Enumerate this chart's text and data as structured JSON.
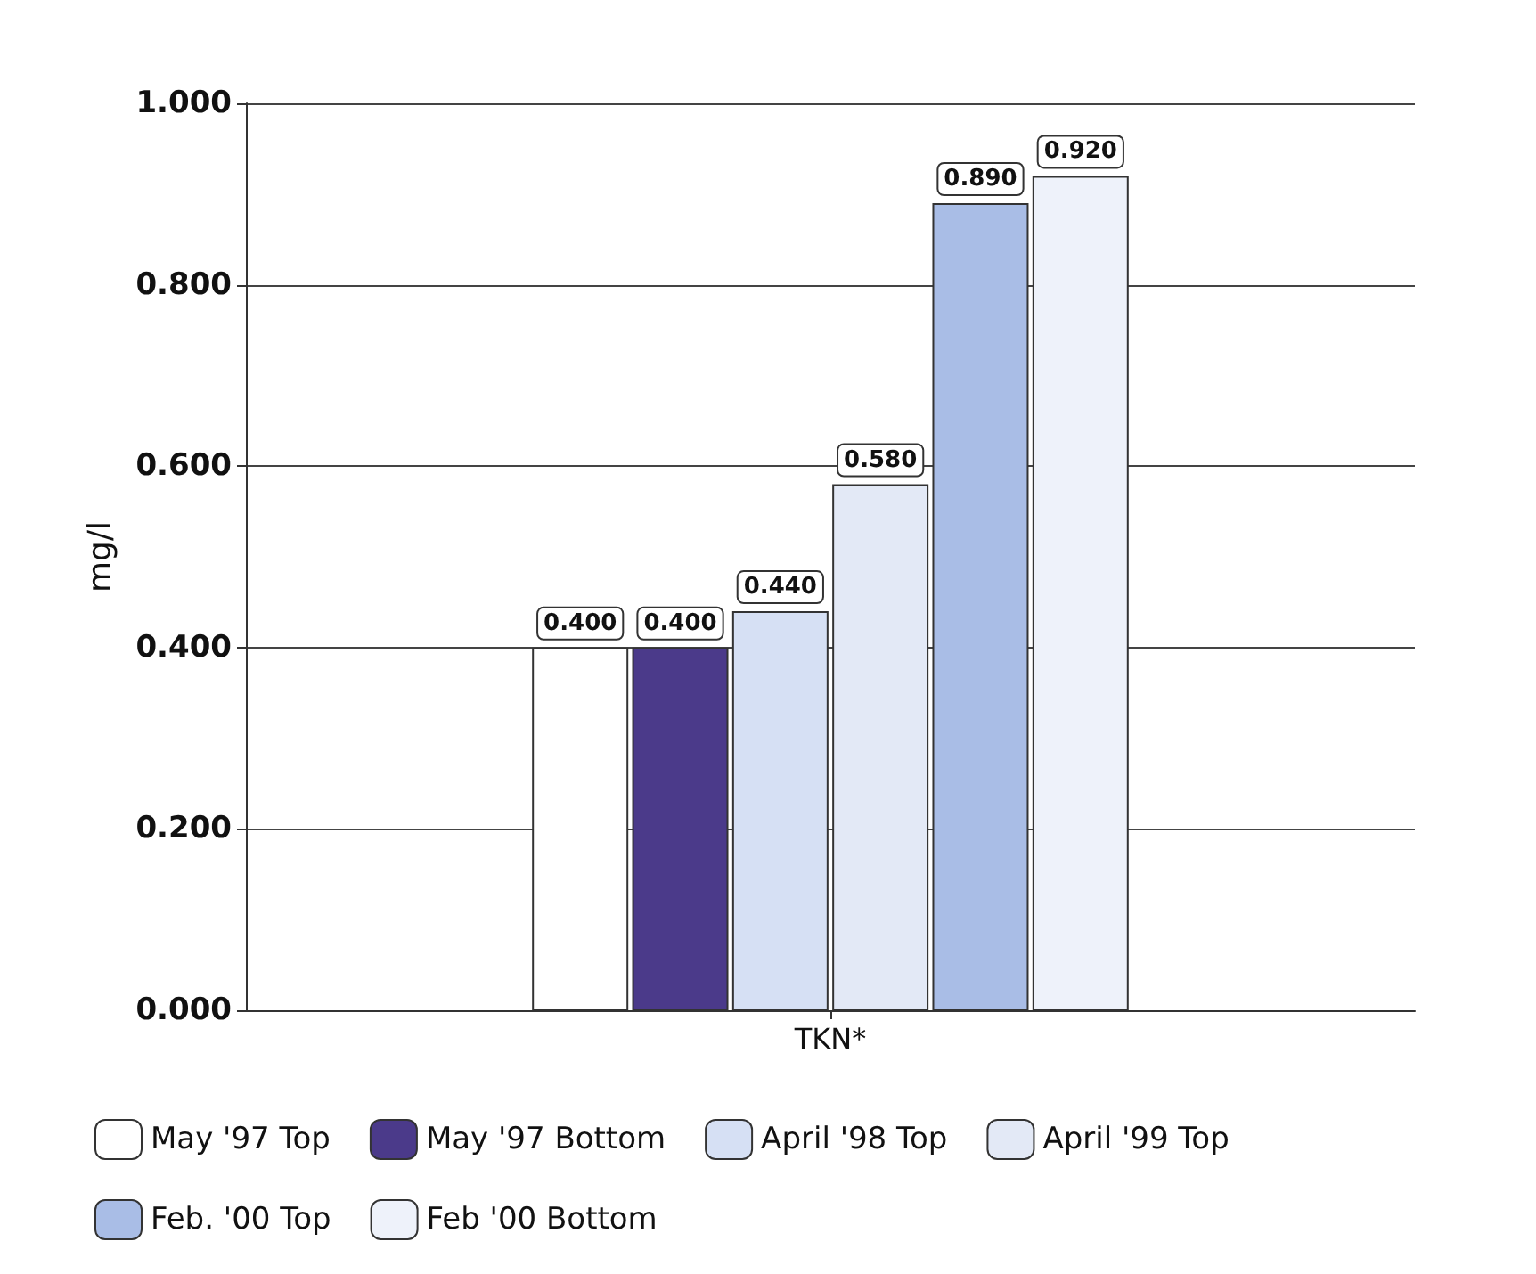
{
  "chart_data": {
    "type": "bar",
    "ylabel": "mg/l",
    "categories": [
      "TKN*"
    ],
    "series": [
      {
        "name": "May '97 Top",
        "color": "#ffffff",
        "values": [
          0.4
        ],
        "value_labels": [
          "0.400"
        ]
      },
      {
        "name": "May '97 Bottom",
        "color": "#4b3a8a",
        "values": [
          0.4
        ],
        "value_labels": [
          "0.400"
        ]
      },
      {
        "name": "April '98 Top",
        "color": "#d6e0f4",
        "values": [
          0.44
        ],
        "value_labels": [
          "0.440"
        ]
      },
      {
        "name": "April '99 Top",
        "color": "#e3e9f6",
        "values": [
          0.58
        ],
        "value_labels": [
          "0.580"
        ]
      },
      {
        "name": "Feb. '00 Top",
        "color": "#a9bde6",
        "values": [
          0.89
        ],
        "value_labels": [
          "0.890"
        ]
      },
      {
        "name": "Feb '00 Bottom",
        "color": "#eef2fa",
        "values": [
          0.92
        ],
        "value_labels": [
          "0.920"
        ]
      }
    ],
    "ylim": [
      0,
      1
    ],
    "yticks": [
      {
        "value": 0,
        "label": "0.000"
      },
      {
        "value": 0.2,
        "label": "0.200"
      },
      {
        "value": 0.4,
        "label": "0.400"
      },
      {
        "value": 0.6,
        "label": "0.600"
      },
      {
        "value": 0.8,
        "label": "0.800"
      },
      {
        "value": 1,
        "label": "1.000"
      }
    ],
    "grid": "y",
    "legend": "bottom"
  }
}
